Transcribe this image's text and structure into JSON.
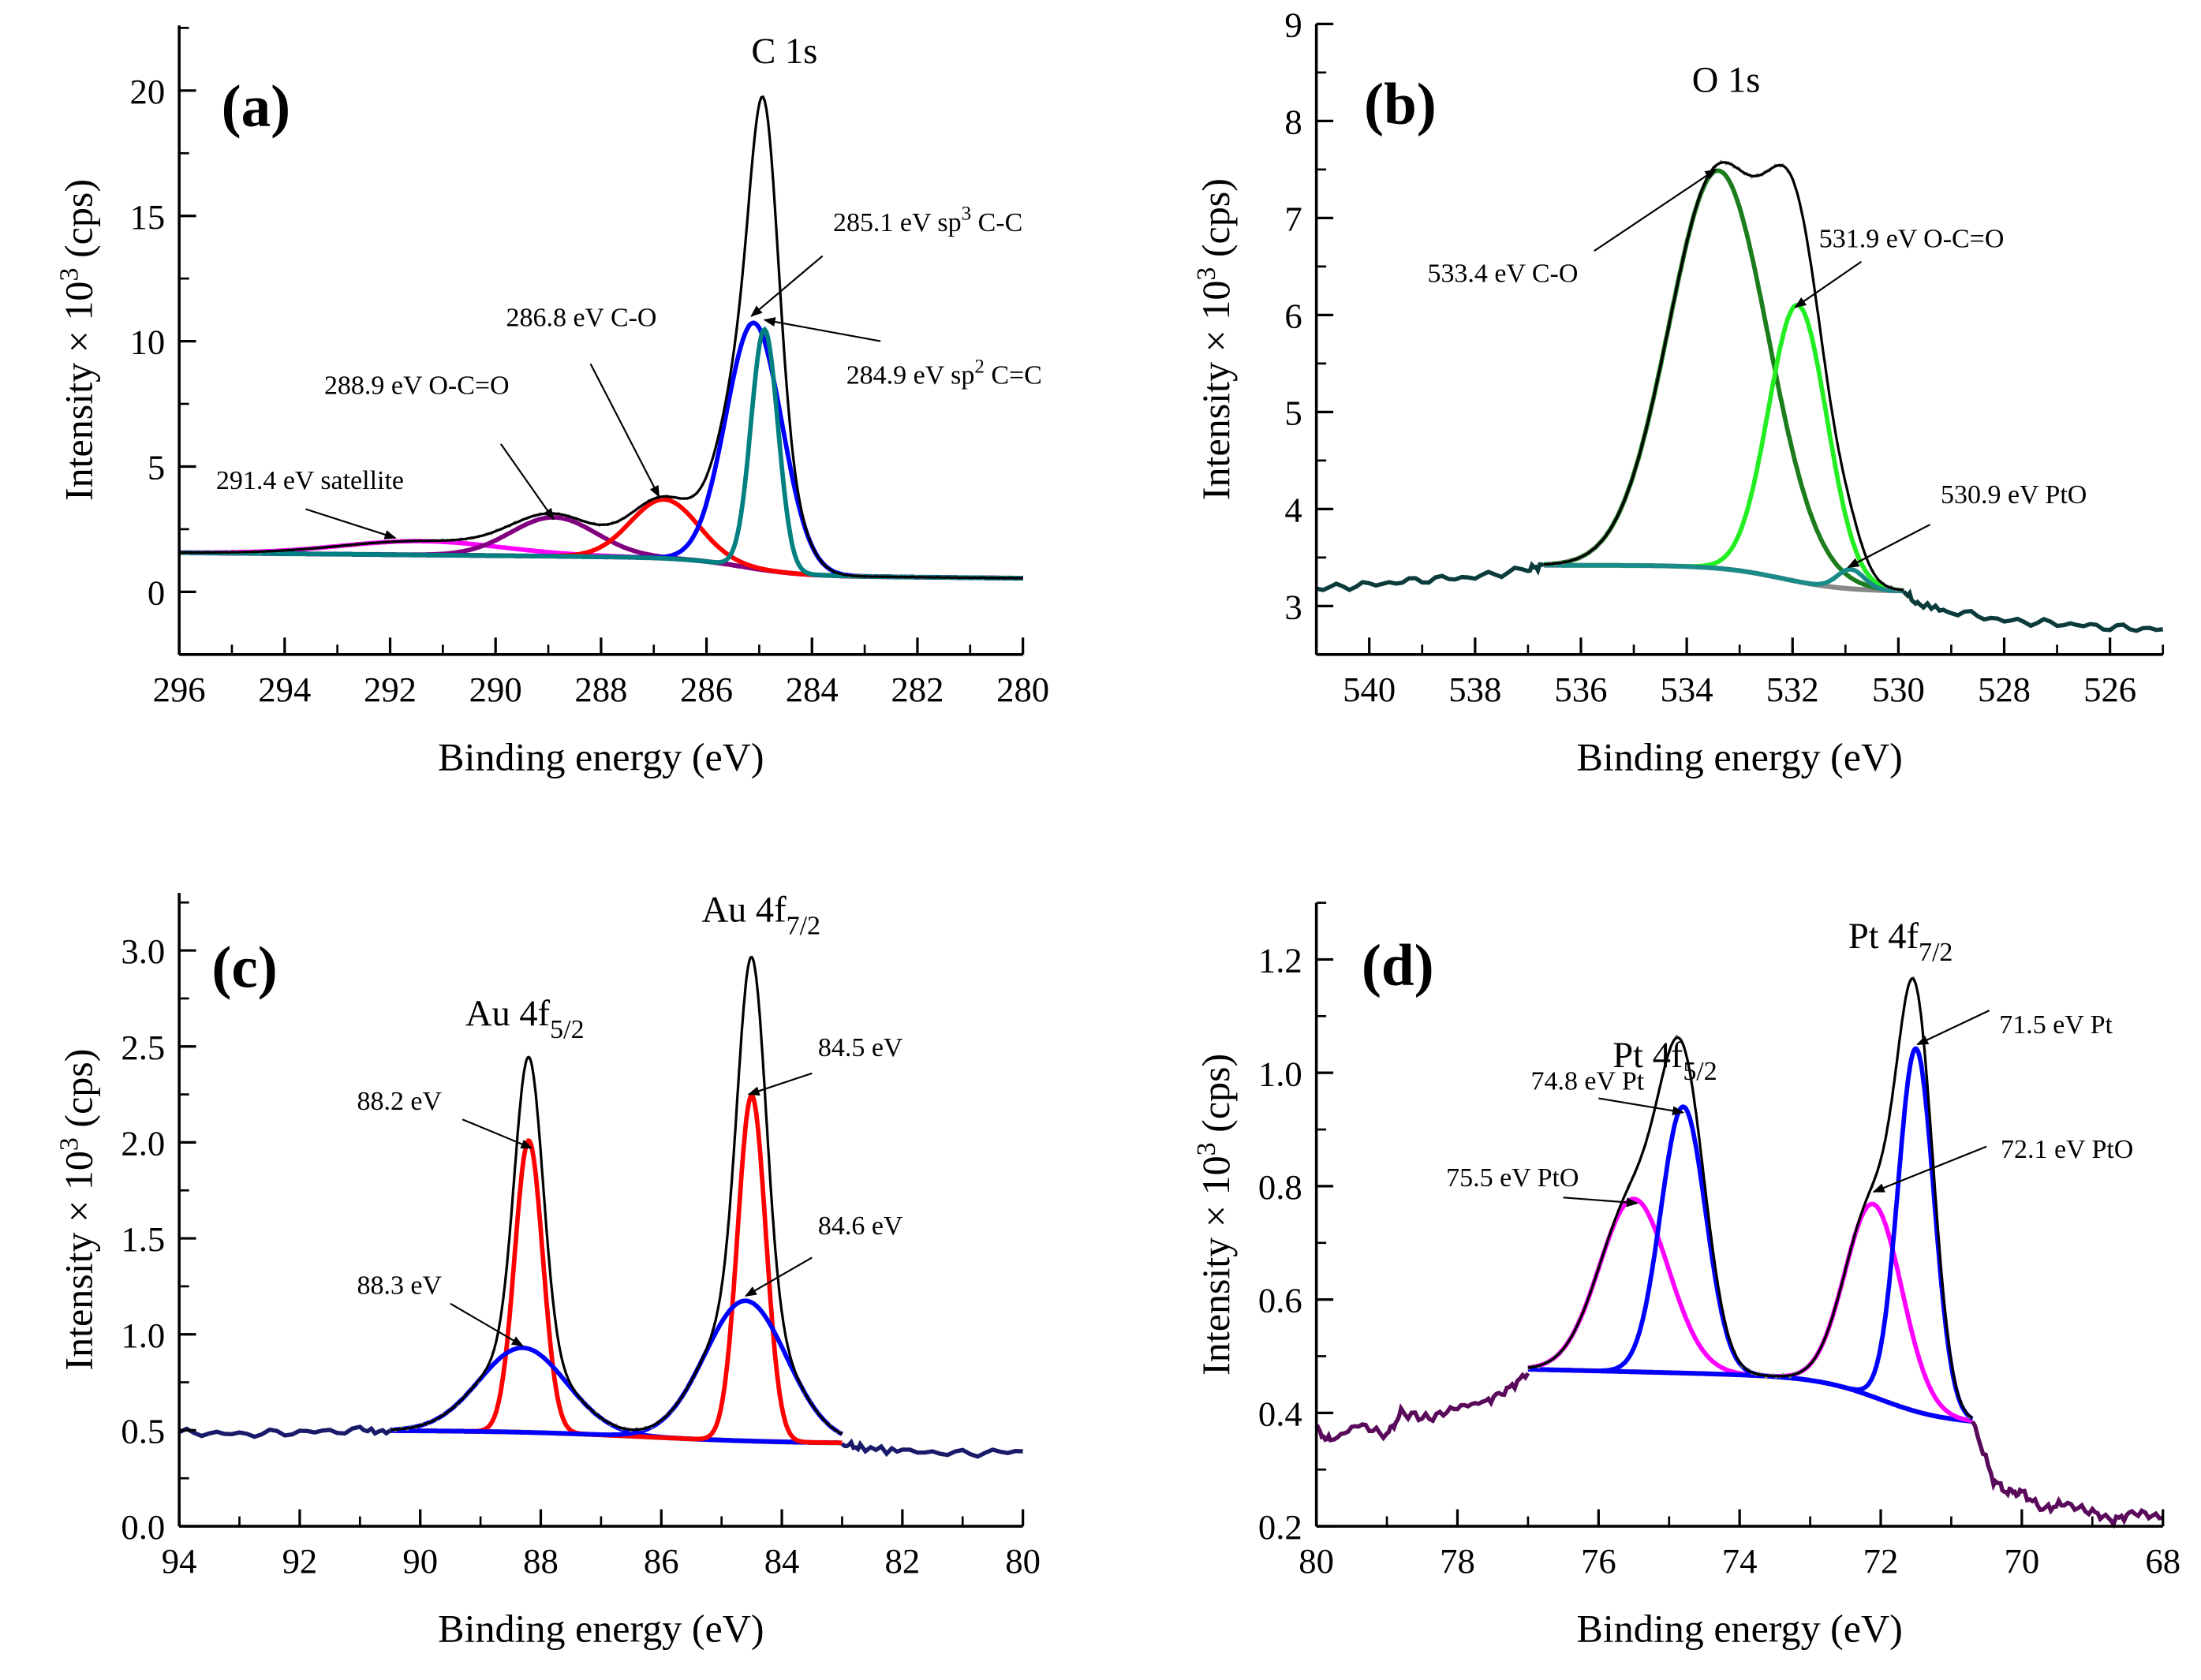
{
  "chart_data": [
    {
      "type": "line",
      "panel_label": "(a)",
      "title": {
        "base": "C 1s",
        "sub": ""
      },
      "title_at": [
        285.15,
        21.1
      ],
      "panel_label_at": [
        295.2,
        18.6
      ],
      "xlabel": "Binding energy (eV)",
      "ylabel": {
        "base": "Intensity × 10",
        "sup": "3",
        "rest": " (cps)"
      },
      "xlim": [
        296,
        280
      ],
      "ylim": [
        -2.5,
        22.6
      ],
      "xticks": [
        "296",
        "294",
        "292",
        "290",
        "288",
        "286",
        "284",
        "282",
        "280"
      ],
      "xminor": 1,
      "yticks": [
        "0",
        "5",
        "10",
        "15",
        "20"
      ],
      "yminor": 2.5,
      "fit_range": [
        296,
        280
      ],
      "background": {
        "high": 1.35,
        "low": 0.65,
        "center": 285.3,
        "width": 0.55,
        "slope": 0.02,
        "color": "#888888"
      },
      "noise": 0.06,
      "envelope_color": "#000000",
      "components": [
        {
          "name": "satellite",
          "center": 291.4,
          "height": 0.55,
          "fwhm": 3.6,
          "color": "#ff00ff"
        },
        {
          "name": "O-C=O",
          "center": 288.9,
          "height": 1.55,
          "fwhm": 1.9,
          "color": "#800080"
        },
        {
          "name": "C-O",
          "center": 286.8,
          "height": 2.35,
          "fwhm": 1.5,
          "color": "#ff0000"
        },
        {
          "name": "sp3 C-C",
          "center": 285.1,
          "height": 9.8,
          "fwhm": 1.25,
          "color": "#0000ff"
        },
        {
          "name": "sp2 C=C",
          "center": 284.9,
          "height": 9.6,
          "fwhm": 0.6,
          "color": "#008080"
        }
      ],
      "tails": [],
      "annotations": [
        {
          "parts": [
            {
              "t": "291.4 eV satellite"
            }
          ],
          "at": [
            295.3,
            4.1
          ],
          "from": [
            293.6,
            3.3
          ],
          "to": [
            291.9,
            2.15
          ]
        },
        {
          "parts": [
            {
              "t": "288.9 eV O-C=O"
            }
          ],
          "at": [
            293.25,
            7.9
          ],
          "from": [
            289.9,
            5.9
          ],
          "to": [
            288.9,
            2.9
          ]
        },
        {
          "parts": [
            {
              "t": "286.8 eV C-O"
            }
          ],
          "at": [
            289.8,
            10.6
          ],
          "from": [
            288.2,
            9.1
          ],
          "to": [
            286.9,
            3.8
          ]
        },
        {
          "parts": [
            {
              "t": "285.1 eV sp"
            },
            {
              "t": "3",
              "sup": true
            },
            {
              "t": " C-C"
            }
          ],
          "at": [
            283.6,
            14.4
          ],
          "from": [
            283.8,
            13.4
          ],
          "to": [
            285.15,
            11.0
          ]
        },
        {
          "parts": [
            {
              "t": "284.9 eV sp"
            },
            {
              "t": "2",
              "sup": true
            },
            {
              "t": " C=C"
            }
          ],
          "at": [
            283.35,
            8.3
          ],
          "from": [
            282.7,
            10.0
          ],
          "to": [
            284.9,
            10.85
          ]
        }
      ]
    },
    {
      "type": "line",
      "panel_label": "(b)",
      "title": {
        "base": "O 1s",
        "sub": ""
      },
      "title_at": [
        533.9,
        8.3
      ],
      "panel_label_at": [
        540.1,
        7.97
      ],
      "xlabel": "Binding energy (eV)",
      "ylabel": {
        "base": "Intensity × 10",
        "sup": "3",
        "rest": " (cps)"
      },
      "xlim": [
        541,
        525
      ],
      "ylim": [
        2.5,
        9
      ],
      "xticks": [
        "540",
        "538",
        "536",
        "534",
        "532",
        "530",
        "528",
        "526"
      ],
      "xminor": 1,
      "yticks": [
        "3",
        "4",
        "5",
        "6",
        "7",
        "8",
        "9"
      ],
      "yminor": 0.5,
      "fit_range": [
        536.7,
        529.9
      ],
      "background": {
        "high": 3.42,
        "low": 3.15,
        "center": 532.2,
        "width": 0.6,
        "slope": 0,
        "color": "#888888"
      },
      "noise": 0.02,
      "envelope_color": "#000000",
      "components": [
        {
          "name": "C-O",
          "center": 533.4,
          "height": 4.1,
          "fwhm": 2.2,
          "color": "#1b7d1b"
        },
        {
          "name": "O-C=O",
          "center": 531.9,
          "height": 2.85,
          "fwhm": 1.3,
          "color": "#22ee22"
        },
        {
          "name": "PtO",
          "center": 530.9,
          "height": 0.2,
          "fwhm": 0.6,
          "color": "#1a8a8a"
        }
      ],
      "tails": [
        {
          "color": "#0b3b3b",
          "points": [
            [
              541,
              3.18
            ],
            [
              540,
              3.22
            ],
            [
              539,
              3.27
            ],
            [
              538,
              3.3
            ],
            [
              537,
              3.38
            ],
            [
              536.7,
              3.42
            ]
          ]
        },
        {
          "color": "#0b3b3b",
          "points": [
            [
              529.9,
              3.15
            ],
            [
              529.6,
              3.0
            ],
            [
              529,
              2.95
            ],
            [
              528,
              2.85
            ],
            [
              527,
              2.82
            ],
            [
              526,
              2.78
            ],
            [
              525,
              2.76
            ]
          ]
        }
      ],
      "annotations": [
        {
          "parts": [
            {
              "t": "533.4 eV C-O"
            }
          ],
          "at": [
            538.9,
            6.34
          ],
          "from": [
            535.75,
            6.66
          ],
          "to": [
            533.45,
            7.5
          ]
        },
        {
          "parts": [
            {
              "t": "531.9 eV O-C=O"
            }
          ],
          "at": [
            531.5,
            6.7
          ],
          "from": [
            530.7,
            6.55
          ],
          "to": [
            531.95,
            6.08
          ]
        },
        {
          "parts": [
            {
              "t": "530.9 eV PtO"
            }
          ],
          "at": [
            529.2,
            4.06
          ],
          "from": [
            529.4,
            3.84
          ],
          "to": [
            530.95,
            3.4
          ]
        }
      ]
    },
    {
      "type": "line",
      "panel_label": "(c)",
      "title": {
        "base": "Au 4f",
        "sub": "7/2"
      },
      "title_at": [
        85.33,
        3.15
      ],
      "subtitle": {
        "base": "Au 4f",
        "sub": "5/2"
      },
      "subtitle_at": [
        89.25,
        2.61
      ],
      "panel_label_at": [
        93.46,
        2.81
      ],
      "xlabel": "Binding energy (eV)",
      "ylabel": {
        "base": "Intensity × 10",
        "sup": "3",
        "rest": " (cps)"
      },
      "xlim": [
        94,
        80
      ],
      "ylim": [
        0,
        3.3
      ],
      "xticks": [
        "94",
        "92",
        "90",
        "88",
        "86",
        "84",
        "82",
        "80"
      ],
      "xminor": 1,
      "yticks": [
        "0.0",
        "0.5",
        "1.0",
        "1.5",
        "2.0",
        "2.5",
        "3.0"
      ],
      "yminor": 0.25,
      "fit_range": [
        90.5,
        83
      ],
      "background": {
        "high": 0.5,
        "low": 0.43,
        "center": 86.2,
        "width": 1.2,
        "slope": 0,
        "color": "#7777aa"
      },
      "noise": 0.01,
      "envelope_color": "#000000",
      "components": [
        {
          "name": "88.2 eV",
          "center": 88.2,
          "height": 1.52,
          "fwhm": 0.55,
          "color": "#ff0000"
        },
        {
          "name": "88.3 eV",
          "center": 88.3,
          "height": 0.44,
          "fwhm": 1.7,
          "color": "#0000ff"
        },
        {
          "name": "84.5 eV",
          "center": 84.5,
          "height": 1.8,
          "fwhm": 0.55,
          "color": "#ff0000"
        },
        {
          "name": "84.6 eV",
          "center": 84.6,
          "height": 0.73,
          "fwhm": 1.6,
          "color": "#0000ff"
        }
      ],
      "tails": [
        {
          "color": "#1a1a6a",
          "points": [
            [
              94,
              0.49
            ],
            [
              93,
              0.48
            ],
            [
              92,
              0.49
            ],
            [
              91,
              0.5
            ],
            [
              90.5,
              0.5
            ]
          ]
        },
        {
          "color": "#1a1a6a",
          "points": [
            [
              83,
              0.43
            ],
            [
              82.7,
              0.41
            ],
            [
              82,
              0.39
            ],
            [
              81,
              0.38
            ],
            [
              80,
              0.39
            ]
          ]
        }
      ],
      "annotations": [
        {
          "parts": [
            {
              "t": "88.2 eV"
            }
          ],
          "at": [
            91.05,
            2.17
          ],
          "from": [
            89.3,
            2.12
          ],
          "to": [
            88.15,
            1.97
          ]
        },
        {
          "parts": [
            {
              "t": "88.3 eV"
            }
          ],
          "at": [
            91.05,
            1.21
          ],
          "from": [
            89.5,
            1.16
          ],
          "to": [
            88.3,
            0.94
          ]
        },
        {
          "parts": [
            {
              "t": "84.5 eV"
            }
          ],
          "at": [
            83.4,
            2.45
          ],
          "from": [
            83.5,
            2.36
          ],
          "to": [
            84.55,
            2.25
          ]
        },
        {
          "parts": [
            {
              "t": "84.6 eV"
            }
          ],
          "at": [
            83.4,
            1.52
          ],
          "from": [
            83.5,
            1.4
          ],
          "to": [
            84.6,
            1.2
          ]
        }
      ]
    },
    {
      "type": "line",
      "panel_label": "(d)",
      "title": {
        "base": "Pt 4f",
        "sub": "7/2"
      },
      "title_at": [
        72.46,
        1.22
      ],
      "subtitle": {
        "base": "Pt 4f",
        "sub": "5/2"
      },
      "subtitle_at": [
        75.8,
        1.01
      ],
      "panel_label_at": [
        79.36,
        1.155
      ],
      "xlabel": "Binding energy (eV)",
      "ylabel": {
        "base": "Intensity × 10",
        "sup": "3",
        "rest": " (cps)"
      },
      "xlim": [
        80,
        68
      ],
      "ylim": [
        0.2,
        1.3
      ],
      "xticks": [
        "80",
        "78",
        "76",
        "74",
        "72",
        "70",
        "68"
      ],
      "xminor": 1,
      "yticks": [
        "0.2",
        "0.4",
        "0.6",
        "0.8",
        "1.0",
        "1.2"
      ],
      "yminor": 0.1,
      "fit_range": [
        77,
        70.7
      ],
      "background": {
        "high": 0.462,
        "low": 0.385,
        "center": 72.0,
        "width": 0.45,
        "slope": 0.003,
        "color": "#888888"
      },
      "noise": 0.004,
      "envelope_color": "#000000",
      "components": [
        {
          "name": "75.5 eV PtO",
          "center": 75.5,
          "height": 0.305,
          "fwhm": 1.15,
          "color": "#ff00ff"
        },
        {
          "name": "74.8 eV Pt",
          "center": 74.8,
          "height": 0.47,
          "fwhm": 0.75,
          "color": "#0000ff"
        },
        {
          "name": "72.1 eV PtO",
          "center": 72.1,
          "height": 0.34,
          "fwhm": 0.95,
          "color": "#ff00ff"
        },
        {
          "name": "71.5 eV Pt",
          "center": 71.5,
          "height": 0.64,
          "fwhm": 0.6,
          "color": "#0000ff"
        }
      ],
      "tails": [
        {
          "color": "#5a0a5a",
          "points": [
            [
              80,
              0.37
            ],
            [
              79.8,
              0.35
            ],
            [
              79.4,
              0.38
            ],
            [
              79,
              0.36
            ],
            [
              78.8,
              0.4
            ],
            [
              78.4,
              0.39
            ],
            [
              78,
              0.41
            ],
            [
              77.6,
              0.42
            ],
            [
              77.3,
              0.44
            ],
            [
              77,
              0.47
            ]
          ]
        },
        {
          "color": "#5a0a5a",
          "points": [
            [
              70.7,
              0.385
            ],
            [
              70.4,
              0.28
            ],
            [
              70.2,
              0.26
            ],
            [
              70,
              0.26
            ],
            [
              69.7,
              0.23
            ],
            [
              69.4,
              0.24
            ],
            [
              69,
              0.225
            ],
            [
              68.7,
              0.21
            ],
            [
              68.4,
              0.225
            ],
            [
              68,
              0.215
            ]
          ]
        }
      ],
      "annotations": [
        {
          "parts": [
            {
              "t": "74.8 eV Pt"
            }
          ],
          "at": [
            76.96,
            0.97
          ],
          "from": [
            76.0,
            0.955
          ],
          "to": [
            74.8,
            0.93
          ]
        },
        {
          "parts": [
            {
              "t": "75.5 eV PtO"
            }
          ],
          "at": [
            78.16,
            0.8
          ],
          "from": [
            76.5,
            0.78
          ],
          "to": [
            75.45,
            0.77
          ]
        },
        {
          "parts": [
            {
              "t": "71.5 eV Pt"
            }
          ],
          "at": [
            70.32,
            1.07
          ],
          "from": [
            70.46,
            1.11
          ],
          "to": [
            71.48,
            1.05
          ]
        },
        {
          "parts": [
            {
              "t": "72.1 eV  PtO"
            }
          ],
          "at": [
            70.3,
            0.85
          ],
          "from": [
            70.5,
            0.87
          ],
          "to": [
            72.1,
            0.79
          ]
        }
      ]
    }
  ]
}
